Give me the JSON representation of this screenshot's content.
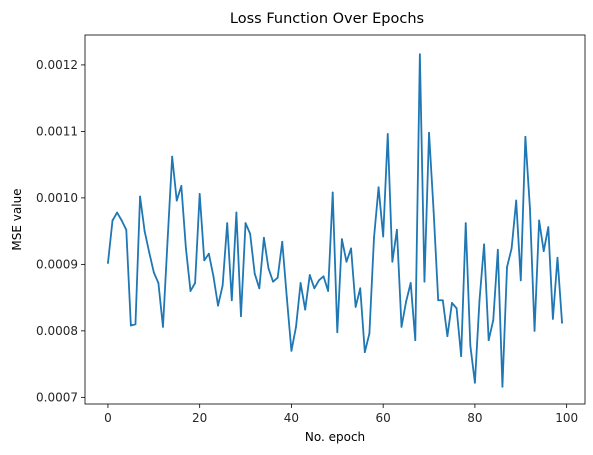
{
  "chart_data": {
    "type": "line",
    "title": "Loss Function Over Epochs",
    "xlabel": "No. epoch",
    "ylabel": "MSE value",
    "xlim": [
      -5,
      104
    ],
    "ylim": [
      0.00069,
      0.001245
    ],
    "xticks": [
      0,
      20,
      40,
      60,
      80,
      100
    ],
    "xtick_labels": [
      "0",
      "20",
      "40",
      "60",
      "80",
      "100"
    ],
    "yticks": [
      0.0007,
      0.0008,
      0.0009,
      0.001,
      0.0011,
      0.0012
    ],
    "ytick_labels": [
      "0.0007",
      "0.0008",
      "0.0009",
      "0.0010",
      "0.0011",
      "0.0012"
    ],
    "grid": false,
    "line_color": "#1f77b4",
    "x": [
      0,
      1,
      2,
      3,
      4,
      5,
      6,
      7,
      8,
      9,
      10,
      11,
      12,
      13,
      14,
      15,
      16,
      17,
      18,
      19,
      20,
      21,
      22,
      23,
      24,
      25,
      26,
      27,
      28,
      29,
      30,
      31,
      32,
      33,
      34,
      35,
      36,
      37,
      38,
      39,
      40,
      41,
      42,
      43,
      44,
      45,
      46,
      47,
      48,
      49,
      50,
      51,
      52,
      53,
      54,
      55,
      56,
      57,
      58,
      59,
      60,
      61,
      62,
      63,
      64,
      65,
      66,
      67,
      68,
      69,
      70,
      71,
      72,
      73,
      74,
      75,
      76,
      77,
      78,
      79,
      80,
      81,
      82,
      83,
      84,
      85,
      86,
      87,
      88,
      89,
      90,
      91,
      92,
      93,
      94,
      95,
      96,
      97,
      98,
      99
    ],
    "y": [
      0.000902,
      0.000966,
      0.000978,
      0.000966,
      0.000952,
      0.000808,
      0.00081,
      0.001002,
      0.00095,
      0.000918,
      0.000888,
      0.000872,
      0.000806,
      0.000936,
      0.001062,
      0.000996,
      0.001018,
      0.000924,
      0.00086,
      0.000872,
      0.001006,
      0.000906,
      0.000916,
      0.000882,
      0.000838,
      0.000868,
      0.000962,
      0.000846,
      0.000978,
      0.000822,
      0.000962,
      0.000946,
      0.000886,
      0.000864,
      0.00094,
      0.000894,
      0.000874,
      0.00088,
      0.000934,
      0.00085,
      0.00077,
      0.000806,
      0.000872,
      0.000832,
      0.000884,
      0.000864,
      0.000876,
      0.000882,
      0.00086,
      0.001008,
      0.000798,
      0.000938,
      0.000904,
      0.000924,
      0.000836,
      0.000864,
      0.000768,
      0.000796,
      0.00094,
      0.001016,
      0.000942,
      0.001096,
      0.000904,
      0.000952,
      0.000806,
      0.000844,
      0.000872,
      0.000786,
      0.001216,
      0.000874,
      0.001098,
      0.00098,
      0.000846,
      0.000846,
      0.000792,
      0.000842,
      0.000834,
      0.000762,
      0.000962,
      0.000778,
      0.000722,
      0.000846,
      0.00093,
      0.000786,
      0.000816,
      0.000922,
      0.000716,
      0.000896,
      0.000924,
      0.000996,
      0.000876,
      0.001092,
      0.000984,
      0.0008,
      0.000966,
      0.00092,
      0.000956,
      0.000818,
      0.00091,
      0.000812
    ]
  }
}
